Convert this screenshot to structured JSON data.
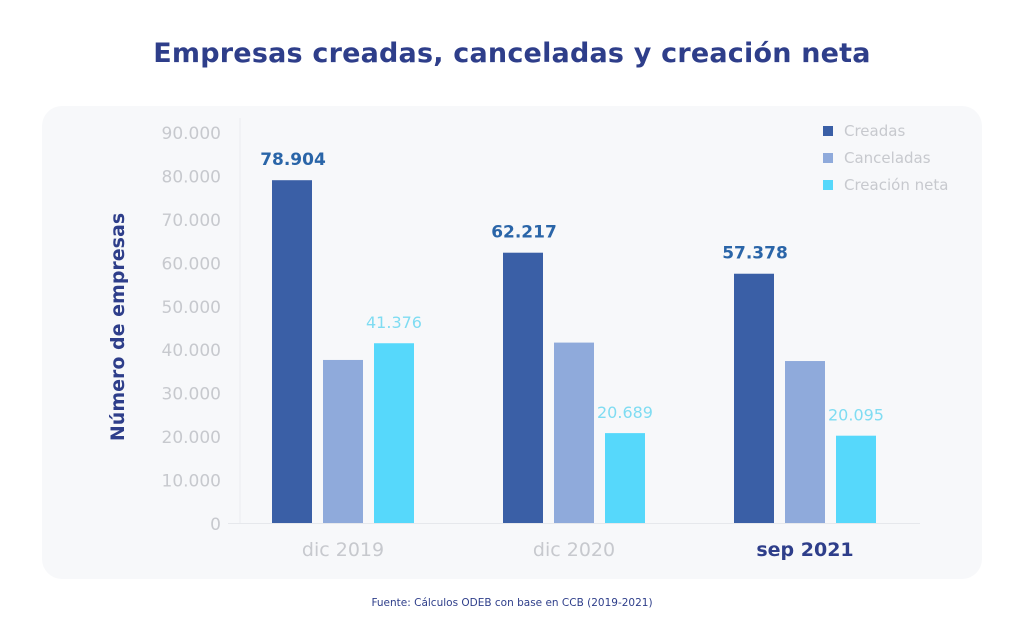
{
  "title": "Empresas creadas, canceladas y creación neta",
  "source": "Fuente: Cálculos ODEB con base en CCB (2019-2021)",
  "colors": {
    "creadas": "#3a5fa6",
    "canceladas": "#8faadb",
    "neta": "#56d8fb",
    "title": "#2e3e8a",
    "label_creadas": "#2a65a8",
    "label_neta": "#7fdcf2",
    "tick": "#c7c9ce",
    "panel": "#f7f8fa"
  },
  "chart_data": {
    "type": "bar",
    "title": "Empresas creadas, canceladas y creación neta",
    "xlabel": "",
    "ylabel": "Número de empresas",
    "ylim": [
      0,
      90000
    ],
    "yticks": [
      0,
      10000,
      20000,
      30000,
      40000,
      50000,
      60000,
      70000,
      80000,
      90000
    ],
    "ytick_labels": [
      "0",
      "10.000",
      "20.000",
      "30.000",
      "40.000",
      "50.000",
      "60.000",
      "70.000",
      "80.000",
      "90.000"
    ],
    "categories": [
      "dic 2019",
      "dic 2020",
      "sep 2021"
    ],
    "highlighted_category": "sep 2021",
    "grid": false,
    "legend_position": "top-right",
    "series": [
      {
        "name": "Creadas",
        "key": "creadas",
        "values": [
          78904,
          62217,
          57378
        ],
        "labels": [
          "78.904",
          "62.217",
          "57.378"
        ]
      },
      {
        "name": "Canceladas",
        "key": "canceladas",
        "values": [
          37528,
          41528,
          37283
        ],
        "labels": [
          null,
          null,
          null
        ]
      },
      {
        "name": "Creación neta",
        "key": "neta",
        "values": [
          41376,
          20689,
          20095
        ],
        "labels": [
          "41.376",
          "20.689",
          "20.095"
        ]
      }
    ]
  }
}
